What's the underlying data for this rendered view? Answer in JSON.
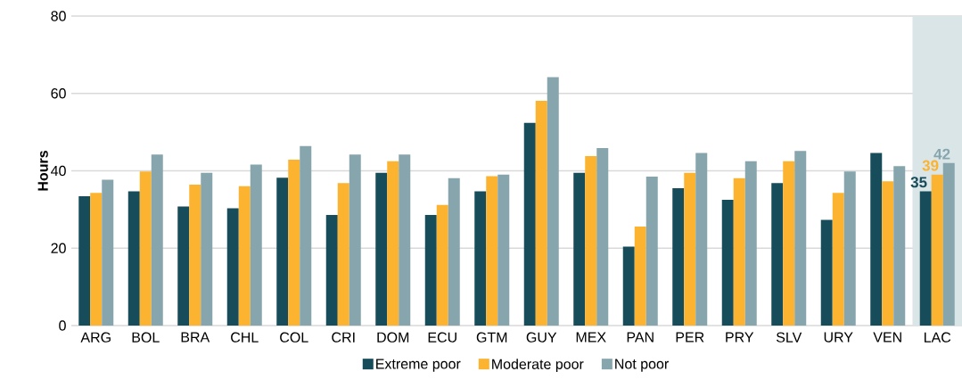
{
  "chart_data": {
    "type": "bar",
    "ylabel": "Hours",
    "categories": [
      "ARG",
      "BOL",
      "BRA",
      "CHL",
      "COL",
      "CRI",
      "DOM",
      "ECU",
      "GTM",
      "GUY",
      "MEX",
      "PAN",
      "PER",
      "PRY",
      "SLV",
      "URY",
      "VEN",
      "LAC"
    ],
    "series": [
      {
        "name": "Extreme poor",
        "color": "#174c5a",
        "values": [
          33.4,
          34.7,
          30.8,
          30.3,
          38.2,
          28.6,
          39.5,
          28.6,
          34.7,
          52.4,
          39.5,
          20.4,
          35.5,
          32.5,
          36.8,
          27.3,
          44.6,
          34.7
        ],
        "value_labels": [
          null,
          null,
          null,
          null,
          null,
          null,
          null,
          null,
          null,
          null,
          null,
          null,
          null,
          null,
          null,
          null,
          null,
          "35"
        ]
      },
      {
        "name": "Moderate poor",
        "color": "#fbb330",
        "values": [
          34.3,
          39.8,
          36.4,
          36.0,
          42.9,
          36.8,
          42.5,
          31.2,
          38.6,
          58.1,
          43.8,
          25.6,
          39.5,
          38.1,
          42.5,
          34.3,
          37.3,
          39.0
        ],
        "value_labels": [
          null,
          null,
          null,
          null,
          null,
          null,
          null,
          null,
          null,
          null,
          null,
          null,
          null,
          null,
          null,
          null,
          null,
          "39"
        ]
      },
      {
        "name": "Not poor",
        "color": "#86a5ad",
        "values": [
          37.7,
          44.2,
          39.5,
          41.6,
          46.4,
          44.2,
          44.2,
          38.1,
          39.0,
          64.2,
          45.9,
          38.5,
          44.6,
          42.5,
          45.1,
          39.8,
          41.2,
          42.0
        ],
        "value_labels": [
          null,
          null,
          null,
          null,
          null,
          null,
          null,
          null,
          null,
          null,
          null,
          null,
          null,
          null,
          null,
          null,
          null,
          "42"
        ]
      }
    ],
    "ylim": [
      0,
      80
    ],
    "yticks": [
      0,
      20,
      40,
      60,
      80
    ],
    "grid": "y",
    "legend": "bottom",
    "bands": [
      {
        "axis": "x",
        "from": "LAC",
        "to": "LAC",
        "color": "#dae5e8"
      }
    ]
  }
}
